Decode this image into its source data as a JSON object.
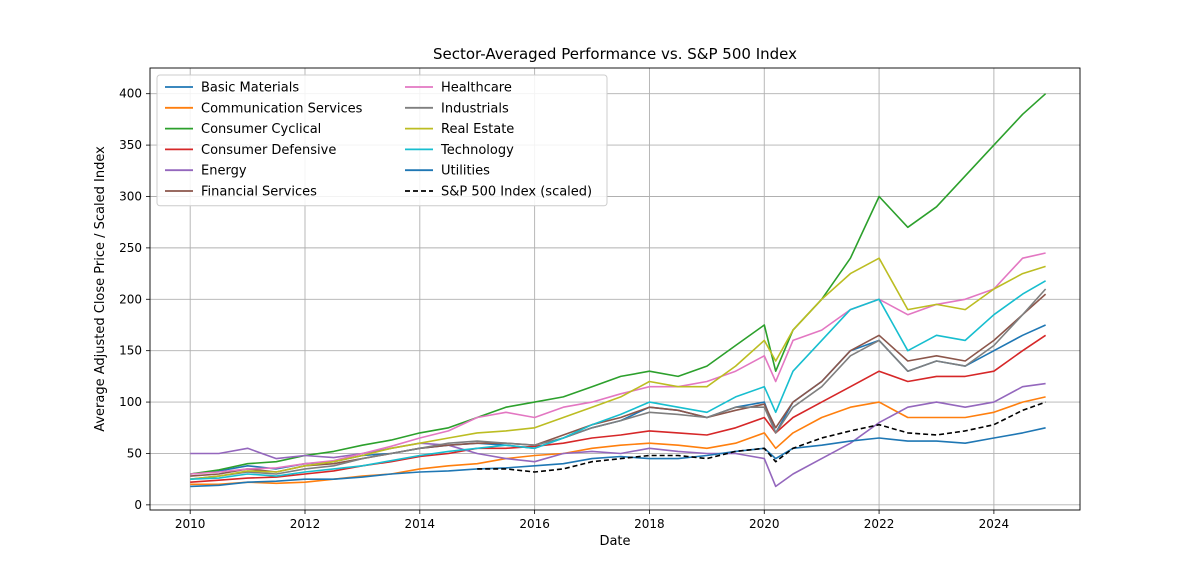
{
  "chart_data": {
    "type": "line",
    "title": "Sector-Averaged Performance vs. S&P 500 Index",
    "xlabel": "Date",
    "ylabel": "Average Adjusted Close Price / Scaled Index",
    "xlim": [
      2009.3,
      2025.5
    ],
    "ylim": [
      -5,
      425
    ],
    "x_ticks": [
      2010,
      2012,
      2014,
      2016,
      2018,
      2020,
      2022,
      2024
    ],
    "x_tick_labels": [
      "2010",
      "2012",
      "2014",
      "2016",
      "2018",
      "2020",
      "2022",
      "2024"
    ],
    "y_ticks": [
      0,
      50,
      100,
      150,
      200,
      250,
      300,
      350,
      400
    ],
    "y_tick_labels": [
      "0",
      "50",
      "100",
      "150",
      "200",
      "250",
      "300",
      "350",
      "400"
    ],
    "grid": true,
    "legend_position": "upper-left",
    "x": [
      2010.0,
      2010.5,
      2011.0,
      2011.5,
      2012.0,
      2012.5,
      2013.0,
      2013.5,
      2014.0,
      2014.5,
      2015.0,
      2015.5,
      2016.0,
      2016.5,
      2017.0,
      2017.5,
      2018.0,
      2018.5,
      2019.0,
      2019.5,
      2020.0,
      2020.2,
      2020.5,
      2021.0,
      2021.5,
      2022.0,
      2022.5,
      2023.0,
      2023.5,
      2024.0,
      2024.5,
      2024.9
    ],
    "series": [
      {
        "name": "Basic Materials",
        "color": "#1f77b4",
        "dash": false,
        "values": [
          30,
          33,
          38,
          35,
          40,
          42,
          48,
          50,
          55,
          58,
          60,
          58,
          55,
          65,
          75,
          82,
          95,
          92,
          85,
          95,
          100,
          70,
          100,
          120,
          150,
          160,
          130,
          140,
          135,
          150,
          165,
          175
        ]
      },
      {
        "name": "Communication Services",
        "color": "#ff7f0e",
        "dash": false,
        "values": [
          20,
          20,
          22,
          21,
          22,
          25,
          28,
          30,
          35,
          38,
          40,
          45,
          48,
          50,
          55,
          58,
          60,
          58,
          55,
          60,
          70,
          55,
          70,
          85,
          95,
          100,
          85,
          85,
          85,
          90,
          100,
          105
        ]
      },
      {
        "name": "Consumer Cyclical",
        "color": "#2ca02c",
        "dash": false,
        "values": [
          30,
          34,
          40,
          42,
          48,
          52,
          58,
          63,
          70,
          75,
          85,
          95,
          100,
          105,
          115,
          125,
          130,
          125,
          135,
          155,
          175,
          130,
          170,
          200,
          240,
          300,
          270,
          290,
          320,
          350,
          380,
          400
        ]
      },
      {
        "name": "Consumer Defensive",
        "color": "#d62728",
        "dash": false,
        "values": [
          22,
          24,
          26,
          27,
          30,
          33,
          38,
          42,
          47,
          50,
          55,
          55,
          57,
          60,
          65,
          68,
          72,
          70,
          68,
          75,
          85,
          70,
          85,
          100,
          115,
          130,
          120,
          125,
          125,
          130,
          150,
          165
        ]
      },
      {
        "name": "Energy",
        "color": "#9467bd",
        "dash": false,
        "values": [
          50,
          50,
          55,
          45,
          48,
          46,
          50,
          55,
          60,
          58,
          50,
          45,
          42,
          50,
          52,
          50,
          55,
          52,
          50,
          50,
          45,
          18,
          30,
          45,
          60,
          80,
          95,
          100,
          95,
          100,
          115,
          118
        ]
      },
      {
        "name": "Financial Services",
        "color": "#8c564b",
        "dash": false,
        "values": [
          28,
          30,
          35,
          32,
          38,
          40,
          45,
          50,
          55,
          58,
          60,
          60,
          58,
          68,
          78,
          85,
          95,
          92,
          85,
          92,
          98,
          75,
          100,
          120,
          150,
          165,
          140,
          145,
          140,
          160,
          185,
          205
        ]
      },
      {
        "name": "Healthcare",
        "color": "#e377c2",
        "dash": false,
        "values": [
          30,
          32,
          35,
          36,
          40,
          43,
          50,
          57,
          65,
          72,
          85,
          90,
          85,
          95,
          100,
          108,
          115,
          115,
          120,
          130,
          145,
          120,
          160,
          170,
          190,
          200,
          185,
          195,
          200,
          210,
          240,
          245
        ]
      },
      {
        "name": "Industrials",
        "color": "#7f7f7f",
        "dash": false,
        "values": [
          25,
          28,
          32,
          30,
          35,
          38,
          45,
          50,
          55,
          60,
          62,
          60,
          58,
          65,
          75,
          82,
          90,
          88,
          85,
          95,
          95,
          70,
          95,
          115,
          145,
          160,
          130,
          140,
          135,
          155,
          185,
          210
        ]
      },
      {
        "name": "Real Estate",
        "color": "#bcbd22",
        "dash": false,
        "values": [
          25,
          28,
          33,
          32,
          38,
          42,
          48,
          55,
          60,
          65,
          70,
          72,
          75,
          85,
          95,
          105,
          120,
          115,
          115,
          135,
          160,
          140,
          170,
          200,
          225,
          240,
          190,
          195,
          190,
          210,
          225,
          232
        ]
      },
      {
        "name": "Technology",
        "color": "#17becf",
        "dash": false,
        "values": [
          25,
          26,
          30,
          28,
          32,
          35,
          38,
          43,
          48,
          52,
          55,
          58,
          55,
          65,
          78,
          88,
          100,
          95,
          90,
          105,
          115,
          90,
          130,
          160,
          190,
          200,
          150,
          165,
          160,
          185,
          205,
          218
        ]
      },
      {
        "name": "Utilities",
        "color": "#1f77b4",
        "dash": false,
        "values": [
          18,
          19,
          22,
          23,
          25,
          25,
          27,
          30,
          32,
          33,
          35,
          36,
          38,
          40,
          45,
          47,
          45,
          45,
          48,
          52,
          55,
          45,
          55,
          58,
          62,
          65,
          62,
          62,
          60,
          65,
          70,
          75
        ]
      },
      {
        "name": "S&P 500 Index (scaled)",
        "color": "#000000",
        "dash": true,
        "values": [
          null,
          null,
          null,
          null,
          null,
          null,
          null,
          null,
          null,
          null,
          35,
          35,
          32,
          35,
          42,
          45,
          48,
          48,
          45,
          52,
          55,
          42,
          55,
          65,
          72,
          78,
          70,
          68,
          72,
          78,
          92,
          100
        ]
      }
    ]
  }
}
